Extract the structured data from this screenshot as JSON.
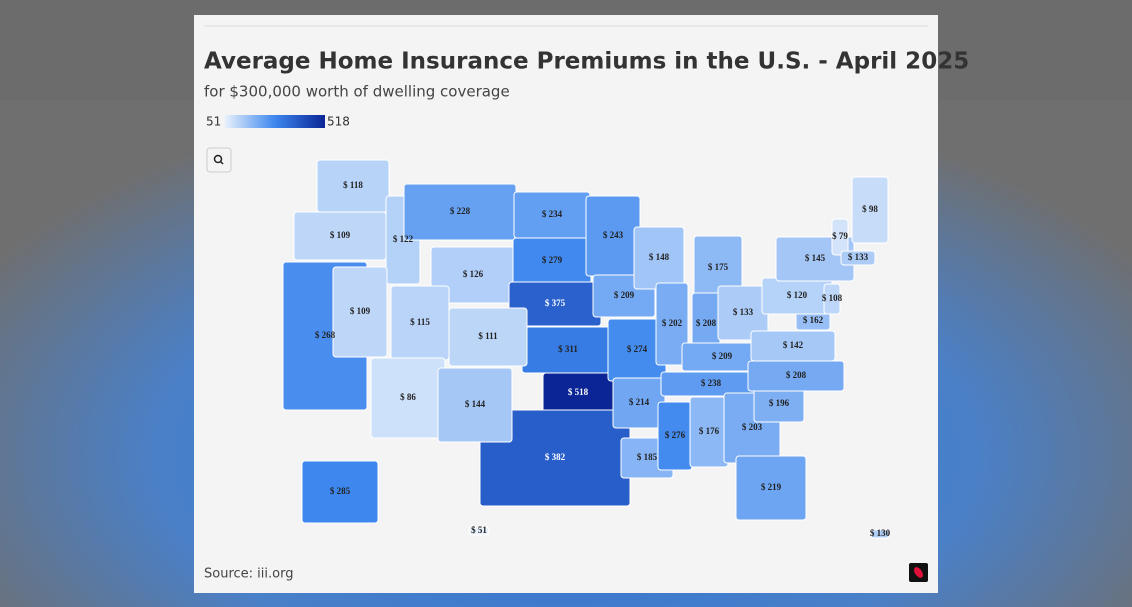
{
  "title": "Average Home Insurance Premiums in the U.S. - April 2025",
  "subtitle": "for $300,000 worth of dwelling coverage",
  "source": "Source: iii.org",
  "chart_data": {
    "type": "choropleth",
    "color_range": [
      51,
      518
    ],
    "colors": [
      "#e8f1fc",
      "#3d87ee",
      "#0b2596"
    ],
    "values": [
      118,
      109,
      122,
      228,
      126,
      234,
      279,
      375,
      311,
      518,
      382,
      243,
      209,
      274,
      214,
      185,
      148,
      202,
      175,
      208,
      133,
      209,
      238,
      276,
      176,
      203,
      219,
      196,
      208,
      142,
      162,
      120,
      145,
      108,
      79,
      98,
      133,
      268,
      109,
      115,
      111,
      86,
      144,
      285,
      51,
      130
    ],
    "value_labels": [
      "$ 118",
      "$ 109",
      "$ 122",
      "$ 228",
      "$ 126",
      "$ 234",
      "$ 279",
      "$ 375",
      "$ 311",
      "$ 518",
      "$ 382",
      "$ 243",
      "$ 209",
      "$ 274",
      "$ 214",
      "$ 185",
      "$ 148",
      "$ 202",
      "$ 175",
      "$ 208",
      "$ 133",
      "$ 209",
      "$ 238",
      "$ 276",
      "$ 176",
      "$ 203",
      "$ 219",
      "$ 196",
      "$ 208",
      "$ 142",
      "$ 162",
      "$ 120",
      "$ 145",
      "$ 108",
      "$ 79",
      "$ 98",
      "$ 133",
      "$ 268",
      "$ 109",
      "$ 115",
      "$ 111",
      "$ 86",
      "$ 144",
      "$ 285",
      "$ 51",
      "$ 130"
    ]
  }
}
